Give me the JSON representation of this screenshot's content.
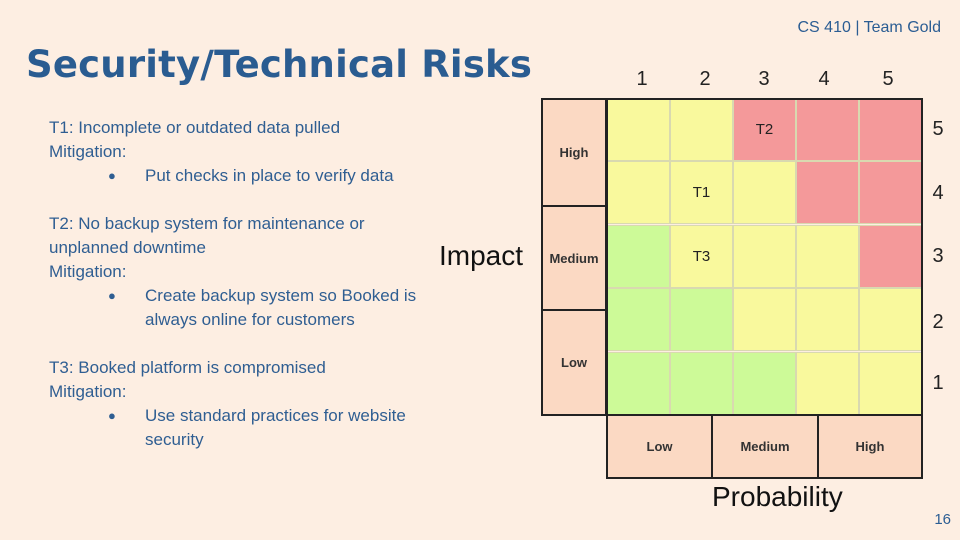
{
  "header": {
    "course": "CS 410 | Team Gold",
    "title": "Security/Technical Risks",
    "page_number": "16"
  },
  "risks": [
    {
      "title": "T1: Incomplete or outdated data pulled",
      "mitigation_label": "Mitigation:",
      "bullets": [
        "Put checks in place to verify data"
      ]
    },
    {
      "title": "T2: No backup system for maintenance or unplanned downtime",
      "mitigation_label": "Mitigation:",
      "bullets": [
        "Create backup system so Booked is always online for customers"
      ]
    },
    {
      "title": "T3: Booked platform is compromised",
      "mitigation_label": "Mitigation:",
      "bullets": [
        "Use standard practices for website security"
      ]
    }
  ],
  "matrix": {
    "column_numbers": [
      "1",
      "2",
      "3",
      "4",
      "5"
    ],
    "row_numbers": [
      "5",
      "4",
      "3",
      "2",
      "1"
    ],
    "impact_labels": [
      "High",
      "Medium",
      "Low"
    ],
    "probability_labels": [
      "Low",
      "Medium",
      "High"
    ],
    "y_title": "Impact",
    "x_title": "Probability",
    "colors": {
      "red": "#f4999a",
      "yellow": "#f9f99d",
      "green": "#cdfa98"
    },
    "cells": [
      [
        "yellow",
        "yellow",
        "red",
        "red",
        "red"
      ],
      [
        "yellow",
        "yellow",
        "yellow",
        "red",
        "red"
      ],
      [
        "green",
        "yellow",
        "yellow",
        "yellow",
        "red"
      ],
      [
        "green",
        "green",
        "yellow",
        "yellow",
        "yellow"
      ],
      [
        "green",
        "green",
        "green",
        "yellow",
        "yellow"
      ]
    ],
    "markers": [
      {
        "label": "T2",
        "impact": 5,
        "probability": 3
      },
      {
        "label": "T1",
        "impact": 4,
        "probability": 2
      },
      {
        "label": "T3",
        "impact": 3,
        "probability": 2
      }
    ]
  }
}
